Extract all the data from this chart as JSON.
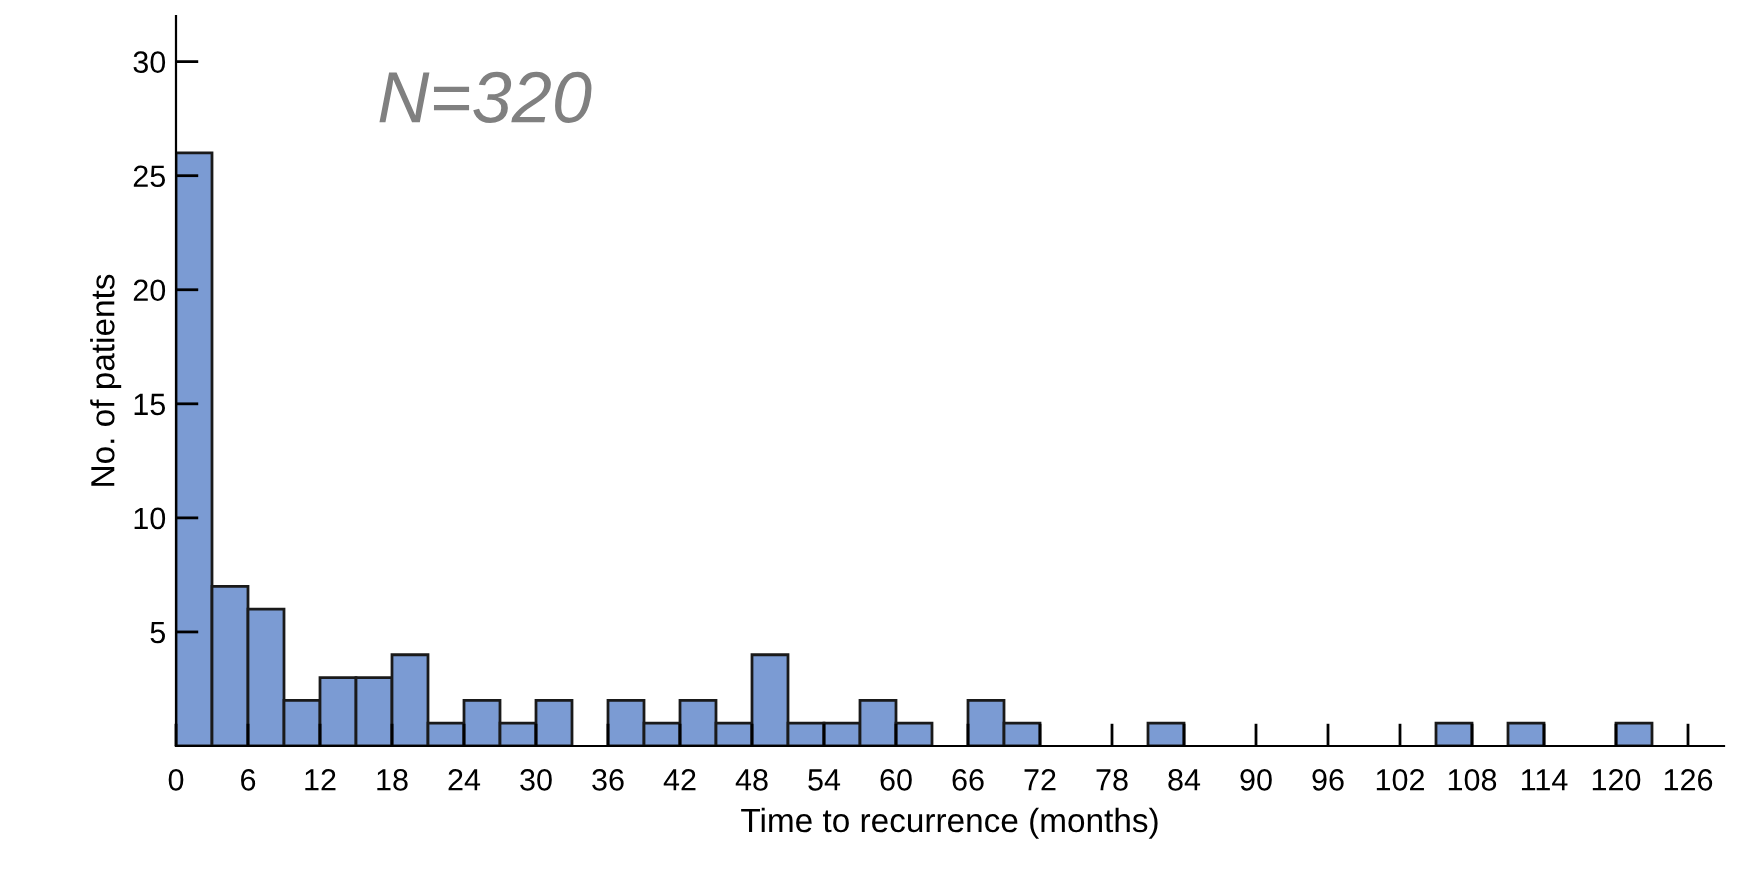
{
  "chart_data": {
    "type": "histogram",
    "xlabel": "Time to recurrence (months)",
    "ylabel": "No. of patients",
    "annotations": [
      "N=320"
    ],
    "bins": [
      0,
      3,
      6,
      9,
      12,
      15,
      18,
      21,
      24,
      27,
      30,
      33,
      36,
      39,
      42,
      45,
      48,
      51,
      54,
      57,
      60,
      63,
      66,
      69,
      72,
      75,
      78,
      81,
      84,
      87,
      90,
      93,
      96,
      99,
      102,
      105,
      108,
      111,
      114,
      117,
      120,
      123,
      126
    ],
    "values": [
      26,
      7,
      6,
      2,
      3,
      3,
      4,
      1,
      2,
      1,
      2,
      0,
      2,
      1,
      2,
      1,
      4,
      1,
      1,
      2,
      1,
      0,
      2,
      1,
      0,
      0,
      0,
      1,
      0,
      0,
      0,
      0,
      0,
      0,
      0,
      1,
      0,
      1,
      0,
      0,
      1,
      0
    ],
    "color": "#7b9bd3",
    "xlim": [
      0,
      129
    ],
    "xticks": [
      0,
      6,
      12,
      18,
      24,
      30,
      36,
      42,
      48,
      54,
      60,
      66,
      72,
      78,
      84,
      90,
      96,
      102,
      108,
      114,
      120,
      126
    ],
    "ylim": [
      0,
      32
    ],
    "yticks": [
      5,
      10,
      15,
      20,
      25,
      30
    ],
    "grid": false
  }
}
